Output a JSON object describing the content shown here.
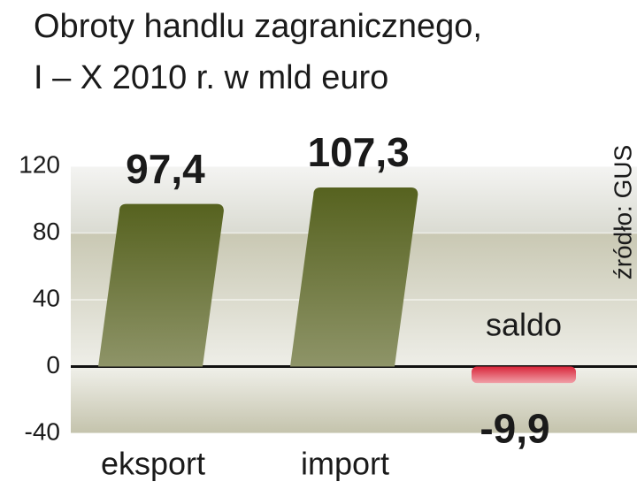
{
  "chart_data": {
    "type": "bar",
    "title": "Obroty handlu zagranicznego,",
    "subtitle": "I – X 2010 r. w mld euro",
    "source": "źródło: GUS",
    "categories": [
      "eksport",
      "import",
      "saldo"
    ],
    "values": [
      97.4,
      107.3,
      -9.9
    ],
    "value_labels": [
      "97,4",
      "107,3",
      "-9,9"
    ],
    "colors": [
      "#5c6a2c",
      "#5c6a2c",
      "#d9263a"
    ],
    "ylim": [
      -40,
      120
    ],
    "yticks": [
      120,
      80,
      40,
      0,
      -40
    ]
  }
}
